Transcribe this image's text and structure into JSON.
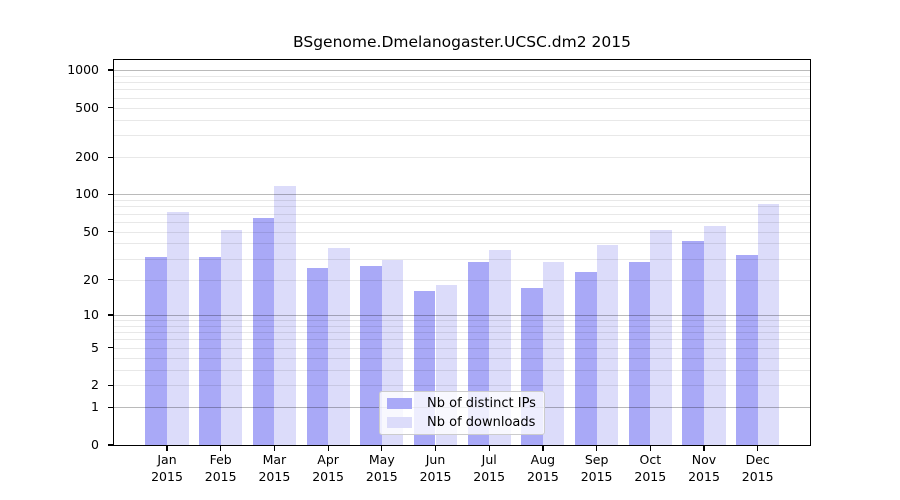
{
  "chart_data": {
    "type": "bar",
    "title": "BSgenome.Dmelanogaster.UCSC.dm2 2015",
    "categories": [
      "Jan",
      "Feb",
      "Mar",
      "Apr",
      "May",
      "Jun",
      "Jul",
      "Aug",
      "Sep",
      "Oct",
      "Nov",
      "Dec"
    ],
    "x_tick_year": "2015",
    "series": [
      {
        "name": "Nb of distinct IPs",
        "color": "#a9a9f7",
        "values": [
          31,
          31,
          65,
          25,
          26,
          16,
          28,
          17,
          23,
          28,
          42,
          32
        ]
      },
      {
        "name": "Nb of downloads",
        "color": "#dcdcfa",
        "values": [
          72,
          51,
          117,
          37,
          29,
          18,
          35,
          28,
          39,
          51,
          55,
          83
        ]
      }
    ],
    "y_ticks": [
      0,
      1,
      2,
      5,
      10,
      20,
      50,
      100,
      200,
      500,
      1000
    ],
    "y_scale": "log1p",
    "ylim": [
      0,
      1200
    ],
    "grid": "horizontal, major at powers of 10, minor at 2-9 per decade",
    "legend_position": "inside-bottom-center",
    "colors": {
      "major_grid": "#bdbdbd",
      "minor_grid": "#e9e9e9",
      "axis": "#000000",
      "background": "#ffffff"
    }
  }
}
